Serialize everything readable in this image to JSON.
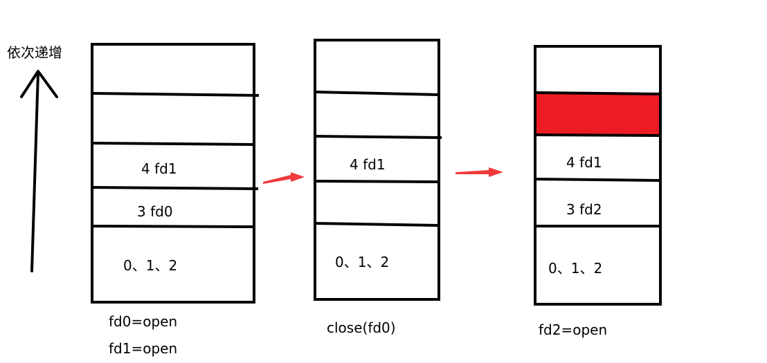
{
  "axis": {
    "label": "依次递增"
  },
  "stacks": [
    {
      "id": "stack1",
      "cells": [
        {
          "label": ""
        },
        {
          "label": ""
        },
        {
          "label": "4 fd1"
        },
        {
          "label": "3 fd0"
        },
        {
          "label": "0、1、2"
        }
      ],
      "captions": [
        "fd0=open",
        "fd1=open"
      ]
    },
    {
      "id": "stack2",
      "cells": [
        {
          "label": ""
        },
        {
          "label": ""
        },
        {
          "label": "4 fd1"
        },
        {
          "label": ""
        },
        {
          "label": "0、1、2"
        }
      ],
      "captions": [
        "close(fd0)"
      ]
    },
    {
      "id": "stack3",
      "cells": [
        {
          "label": ""
        },
        {
          "label": "",
          "highlight": "#ed1c24"
        },
        {
          "label": "4 fd1"
        },
        {
          "label": "3 fd2"
        },
        {
          "label": "0、1、2"
        }
      ],
      "captions": [
        "fd2=open"
      ]
    }
  ],
  "arrow_color": "#ef3b3b"
}
